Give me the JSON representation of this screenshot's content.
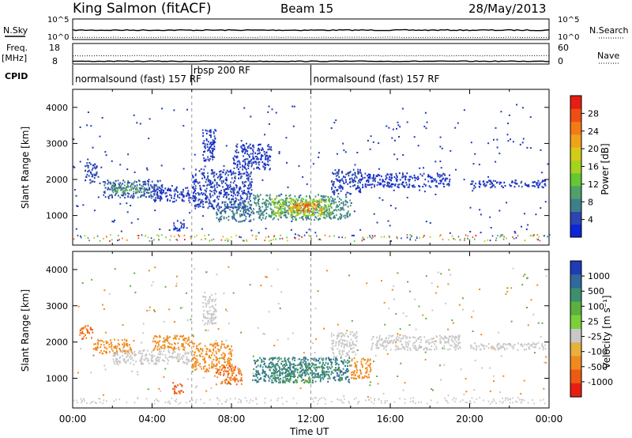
{
  "header": {
    "title": "King Salmon (fitACF)",
    "beam": "Beam 15",
    "date": "28/May/2013"
  },
  "left_labels": {
    "nsky": "N.Sky",
    "freq_line1": "Freq.",
    "freq_line2": "[MHz]",
    "cpid": "CPID"
  },
  "right_labels": {
    "nsearch": "N.Search",
    "nave": "Nave"
  },
  "chart_data": [
    {
      "type": "line",
      "name": "noise",
      "left_ticks": [
        "10^5",
        "10^0"
      ],
      "right_ticks": [
        "10^5",
        "10^0"
      ],
      "series": [
        {
          "name": "N.Sky",
          "values_log10_mean": 0.55
        },
        {
          "name": "N.Search",
          "values_log10_mean": 0.15
        }
      ]
    },
    {
      "type": "line",
      "name": "frequency_nave",
      "left_ticks": [
        "18",
        "8"
      ],
      "right_ticks": [
        "60",
        "0"
      ],
      "series": [
        {
          "name": "Freq",
          "values_mhz_mean": 10.5
        },
        {
          "name": "Nave",
          "values_mean": 22
        }
      ]
    },
    {
      "type": "table",
      "name": "cpid",
      "segments": [
        {
          "start_ut": 0.0,
          "end_ut": 6.0,
          "label": "normalsound (fast) 157 RF"
        },
        {
          "start_ut": 6.0,
          "end_ut": 12.0,
          "label": "rbsp 200 RF"
        },
        {
          "start_ut": 12.0,
          "end_ut": 24.0,
          "label": "normalsound (fast) 157 RF"
        }
      ]
    },
    {
      "type": "heatmap",
      "name": "power",
      "ylabel": "Slant Range [km]",
      "x_range_ut": [
        0,
        24
      ],
      "ylim_km": [
        180,
        4500
      ],
      "yticks": [
        1000,
        2000,
        3000,
        4000
      ],
      "colorbar": {
        "label": "Power [dB]",
        "range": [
          0,
          32
        ],
        "ticks": [
          "4",
          "8",
          "12",
          "16",
          "20",
          "24",
          "28"
        ],
        "colors": [
          "#0b25d8",
          "#2c45b0",
          "#3d7f8a",
          "#4fa06a",
          "#63c832",
          "#a7d21d",
          "#d4cb19",
          "#f0a21a",
          "#f47a17",
          "#ee4d14",
          "#e81e13"
        ]
      },
      "regions": [
        {
          "t0": 0.6,
          "t1": 1.2,
          "r0": 1900,
          "r1": 2500,
          "v": 4
        },
        {
          "t0": 1.5,
          "t1": 4.5,
          "r0": 1500,
          "r1": 2000,
          "v": 5
        },
        {
          "t0": 2.0,
          "t1": 3.6,
          "r0": 1650,
          "r1": 1900,
          "v": 11
        },
        {
          "t0": 4.0,
          "t1": 6.2,
          "r0": 1400,
          "r1": 1800,
          "v": 3
        },
        {
          "t0": 5.0,
          "t1": 5.6,
          "r0": 600,
          "r1": 900,
          "v": 3
        },
        {
          "t0": 6.0,
          "t1": 9.0,
          "r0": 1200,
          "r1": 2300,
          "v": 4
        },
        {
          "t0": 6.5,
          "t1": 7.2,
          "r0": 2500,
          "r1": 3400,
          "v": 3
        },
        {
          "t0": 7.2,
          "t1": 9.0,
          "r0": 850,
          "r1": 1400,
          "v": 7
        },
        {
          "t0": 8.0,
          "t1": 10.0,
          "r0": 2300,
          "r1": 3000,
          "v": 3
        },
        {
          "t0": 9.0,
          "t1": 14.0,
          "r0": 900,
          "r1": 1600,
          "v": 8
        },
        {
          "t0": 10.0,
          "t1": 13.0,
          "r0": 1000,
          "r1": 1500,
          "v": 15
        },
        {
          "t0": 10.8,
          "t1": 12.6,
          "r0": 1100,
          "r1": 1400,
          "v": 21
        },
        {
          "t0": 11.2,
          "t1": 12.2,
          "r0": 1150,
          "r1": 1350,
          "v": 27
        },
        {
          "t0": 13.0,
          "t1": 14.5,
          "r0": 1600,
          "r1": 2300,
          "v": 4
        },
        {
          "t0": 14.5,
          "t1": 19.0,
          "r0": 1800,
          "r1": 2200,
          "v": 3
        },
        {
          "t0": 20.0,
          "t1": 23.8,
          "r0": 1800,
          "r1": 2000,
          "v": 3
        }
      ]
    },
    {
      "type": "heatmap",
      "name": "velocity",
      "ylabel": "Slant Range [km]",
      "xlabel": "Time UT",
      "x_range_ut": [
        0,
        24
      ],
      "xticks": [
        "00:00",
        "04:00",
        "08:00",
        "12:00",
        "16:00",
        "20:00",
        "00:00"
      ],
      "ylim_km": [
        180,
        4500
      ],
      "yticks": [
        1000,
        2000,
        3000,
        4000
      ],
      "colorbar": {
        "label": "Velocity [m s⁻¹]",
        "ticks": [
          "1000",
          "500",
          "100",
          "25",
          "-25",
          "-100",
          "-500",
          "-1000"
        ],
        "colors": [
          "#1e3bb8",
          "#2f6a9a",
          "#3c8f6e",
          "#5cb03f",
          "#7bd03a",
          "#c8c8c8",
          "#e8b03c",
          "#f08a1c",
          "#ee5a14",
          "#e81e13"
        ]
      },
      "regions": [
        {
          "t0": 0.3,
          "t1": 1.0,
          "r0": 2100,
          "r1": 2500,
          "v": -300
        },
        {
          "t0": 1.0,
          "t1": 3.0,
          "r0": 1700,
          "r1": 2100,
          "v": -200
        },
        {
          "t0": 2.0,
          "t1": 6.0,
          "r0": 1400,
          "r1": 1800,
          "v": 0
        },
        {
          "t0": 4.0,
          "t1": 6.0,
          "r0": 1800,
          "r1": 2200,
          "v": -150
        },
        {
          "t0": 5.0,
          "t1": 5.6,
          "r0": 600,
          "r1": 900,
          "v": -400
        },
        {
          "t0": 6.0,
          "t1": 8.0,
          "r0": 1200,
          "r1": 2000,
          "v": -120
        },
        {
          "t0": 7.2,
          "t1": 8.5,
          "r0": 850,
          "r1": 1400,
          "v": -300
        },
        {
          "t0": 6.5,
          "t1": 7.2,
          "r0": 2500,
          "r1": 3400,
          "v": 0
        },
        {
          "t0": 9.0,
          "t1": 14.0,
          "r0": 900,
          "r1": 1600,
          "v": 300
        },
        {
          "t0": 10.0,
          "t1": 13.0,
          "r0": 1000,
          "r1": 1400,
          "v": 150
        },
        {
          "t0": 10.5,
          "t1": 12.0,
          "r0": 900,
          "r1": 1000,
          "v": 60
        },
        {
          "t0": 13.0,
          "t1": 14.3,
          "r0": 1600,
          "r1": 2300,
          "v": 0
        },
        {
          "t0": 14.0,
          "t1": 15.0,
          "r0": 1000,
          "r1": 1600,
          "v": -150
        },
        {
          "t0": 15.0,
          "t1": 19.5,
          "r0": 1800,
          "r1": 2200,
          "v": 0
        },
        {
          "t0": 20.0,
          "t1": 23.8,
          "r0": 1800,
          "r1": 2000,
          "v": 0
        }
      ]
    }
  ]
}
